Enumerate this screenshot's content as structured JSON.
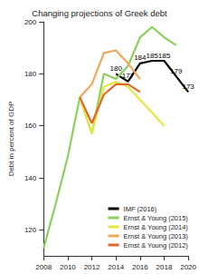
{
  "chart_data": {
    "type": "line",
    "title": "Changing projections of Greek debt",
    "y_label": "Debt in percent of GDP",
    "x": [
      2008,
      2009,
      2010,
      2011,
      2012,
      2013,
      2014,
      2015,
      2016,
      2017,
      2018,
      2019,
      2020
    ],
    "series": [
      {
        "name": "IMF (2016)",
        "color": "#000000",
        "data_labels": true,
        "values": [
          null,
          null,
          null,
          null,
          null,
          null,
          180,
          177,
          184,
          185,
          185,
          179,
          173
        ]
      },
      {
        "name": "Ernst & Young (2015)",
        "color": "#8ccf5a",
        "values": [
          113,
          130,
          148,
          171,
          157,
          180,
          178,
          183,
          194,
          198,
          194,
          191,
          null
        ]
      },
      {
        "name": "Ernst & Young (2014)",
        "color": "#e6e640",
        "values": [
          null,
          null,
          null,
          171,
          157,
          175,
          177,
          175,
          170,
          165,
          160,
          null,
          null
        ]
      },
      {
        "name": "Ernst & Young (2013)",
        "color": "#f2a65a",
        "values": [
          null,
          null,
          null,
          171,
          176,
          188,
          189,
          184,
          178,
          null,
          null,
          null,
          null
        ]
      },
      {
        "name": "Ernst & Young (2012)",
        "color": "#e0682c",
        "values": [
          null,
          null,
          null,
          171,
          161,
          172,
          176,
          176,
          173,
          null,
          null,
          null,
          null
        ]
      }
    ],
    "xlim": [
      2008,
      2020
    ],
    "xticks": [
      2008,
      2010,
      2012,
      2014,
      2016,
      2018,
      2020
    ],
    "ylim": [
      110,
      200
    ],
    "yticks": [
      120,
      140,
      160,
      180,
      200
    ],
    "grid": false,
    "legend": "lower right",
    "marker": "none",
    "line_style": "solid"
  }
}
